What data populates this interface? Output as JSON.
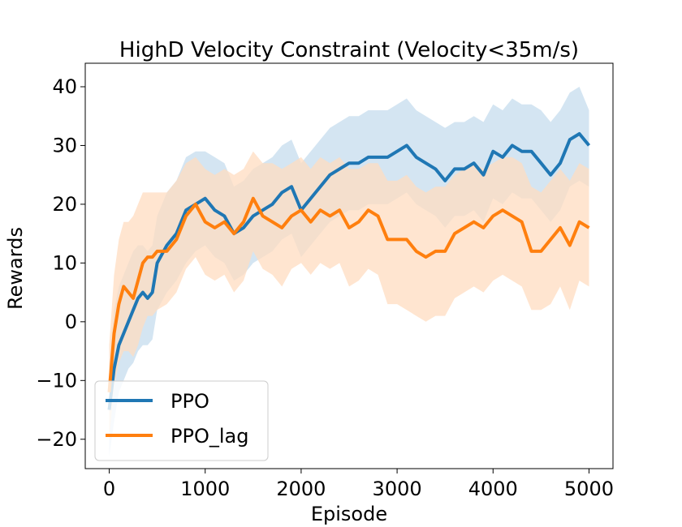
{
  "chart_data": {
    "type": "line",
    "title": "HighD Velocity Constraint (Velocity<35m/s)",
    "xlabel": "Episode",
    "ylabel": "Rewards",
    "xlim": [
      -250,
      5250
    ],
    "ylim": [
      -25,
      44
    ],
    "xticks": [
      0,
      1000,
      2000,
      3000,
      4000,
      5000
    ],
    "yticks": [
      -20,
      -10,
      0,
      10,
      20,
      30,
      40
    ],
    "xtick_labels": [
      "0",
      "1000",
      "2000",
      "3000",
      "4000",
      "5000"
    ],
    "ytick_labels": [
      "−20",
      "−10",
      "0",
      "10",
      "20",
      "30",
      "40"
    ],
    "grid": false,
    "legend_position": "lower-left",
    "series": [
      {
        "name": "PPO",
        "color": "#1f77b4",
        "band_color": "#c6dcee",
        "x": [
          0,
          50,
          100,
          150,
          200,
          250,
          300,
          350,
          400,
          450,
          500,
          600,
          700,
          800,
          900,
          1000,
          1100,
          1200,
          1300,
          1400,
          1500,
          1600,
          1700,
          1800,
          1900,
          2000,
          2100,
          2200,
          2300,
          2400,
          2500,
          2600,
          2700,
          2800,
          2900,
          3000,
          3100,
          3200,
          3300,
          3400,
          3500,
          3600,
          3700,
          3800,
          3900,
          4000,
          4100,
          4200,
          4300,
          4400,
          4500,
          4600,
          4700,
          4800,
          4900,
          5000
        ],
        "y": [
          -15,
          -8,
          -4,
          -2,
          0,
          2,
          4,
          5,
          4,
          5,
          10,
          13,
          15,
          19,
          20,
          21,
          19,
          18,
          15,
          16,
          18,
          19,
          20,
          22,
          23,
          19,
          21,
          23,
          25,
          26,
          27,
          27,
          28,
          28,
          28,
          29,
          30,
          28,
          27,
          26,
          24,
          26,
          26,
          27,
          25,
          29,
          28,
          30,
          29,
          29,
          27,
          25,
          27,
          31,
          32,
          30
        ],
        "upper": [
          -8,
          2,
          6,
          8,
          10,
          12,
          13,
          13,
          12,
          13,
          18,
          22,
          24,
          28,
          29,
          29,
          28,
          27,
          23,
          24,
          26,
          27,
          28,
          30,
          31,
          27,
          29,
          31,
          33,
          34,
          35,
          35,
          36,
          36,
          36,
          37,
          38,
          36,
          35,
          34,
          33,
          34,
          34,
          35,
          34,
          37,
          36,
          38,
          37,
          37,
          36,
          34,
          36,
          39,
          40,
          36
        ],
        "lower": [
          -23,
          -17,
          -12,
          -10,
          -8,
          -7,
          -5,
          -4,
          -4,
          -3,
          2,
          5,
          7,
          10,
          12,
          13,
          11,
          10,
          7,
          8,
          10,
          11,
          12,
          14,
          15,
          11,
          13,
          15,
          17,
          18,
          19,
          19,
          20,
          20,
          20,
          21,
          22,
          20,
          19,
          18,
          16,
          18,
          18,
          19,
          17,
          21,
          20,
          22,
          21,
          21,
          19,
          17,
          19,
          23,
          24,
          23
        ]
      },
      {
        "name": "PPO_lag",
        "color": "#ff7f0e",
        "band_color": "#ffdcc0",
        "x": [
          0,
          50,
          100,
          150,
          200,
          250,
          300,
          350,
          400,
          450,
          500,
          600,
          700,
          800,
          900,
          1000,
          1100,
          1200,
          1300,
          1400,
          1500,
          1600,
          1700,
          1800,
          1900,
          2000,
          2100,
          2200,
          2300,
          2400,
          2500,
          2600,
          2700,
          2800,
          2900,
          3000,
          3100,
          3200,
          3300,
          3400,
          3500,
          3600,
          3700,
          3800,
          3900,
          4000,
          4100,
          4200,
          4300,
          4400,
          4500,
          4600,
          4700,
          4800,
          4900,
          5000
        ],
        "y": [
          -12,
          -2,
          3,
          6,
          5,
          4,
          7,
          10,
          11,
          11,
          12,
          12,
          14,
          18,
          20,
          17,
          16,
          17,
          15,
          17,
          21,
          18,
          17,
          16,
          18,
          19,
          17,
          19,
          18,
          19,
          16,
          17,
          19,
          18,
          14,
          14,
          14,
          12,
          11,
          12,
          12,
          15,
          16,
          17,
          16,
          18,
          19,
          18,
          17,
          12,
          12,
          14,
          16,
          13,
          17,
          16
        ],
        "upper": [
          -4,
          8,
          14,
          17,
          17,
          18,
          20,
          22,
          22,
          22,
          22,
          22,
          24,
          27,
          28,
          26,
          25,
          26,
          25,
          26,
          29,
          27,
          27,
          26,
          27,
          28,
          26,
          28,
          27,
          28,
          26,
          26,
          27,
          27,
          24,
          24,
          25,
          23,
          22,
          23,
          23,
          25,
          26,
          27,
          26,
          27,
          28,
          28,
          27,
          23,
          22,
          24,
          26,
          24,
          27,
          26
        ],
        "lower": [
          -20,
          -11,
          -7,
          -5,
          -5,
          -6,
          -4,
          -1,
          1,
          1,
          2,
          3,
          5,
          9,
          11,
          8,
          7,
          8,
          5,
          7,
          12,
          9,
          8,
          6,
          9,
          10,
          8,
          10,
          9,
          10,
          6,
          7,
          9,
          8,
          3,
          3,
          2,
          1,
          0,
          1,
          1,
          4,
          5,
          6,
          5,
          7,
          8,
          7,
          6,
          2,
          2,
          3,
          6,
          2,
          7,
          6
        ]
      }
    ]
  }
}
